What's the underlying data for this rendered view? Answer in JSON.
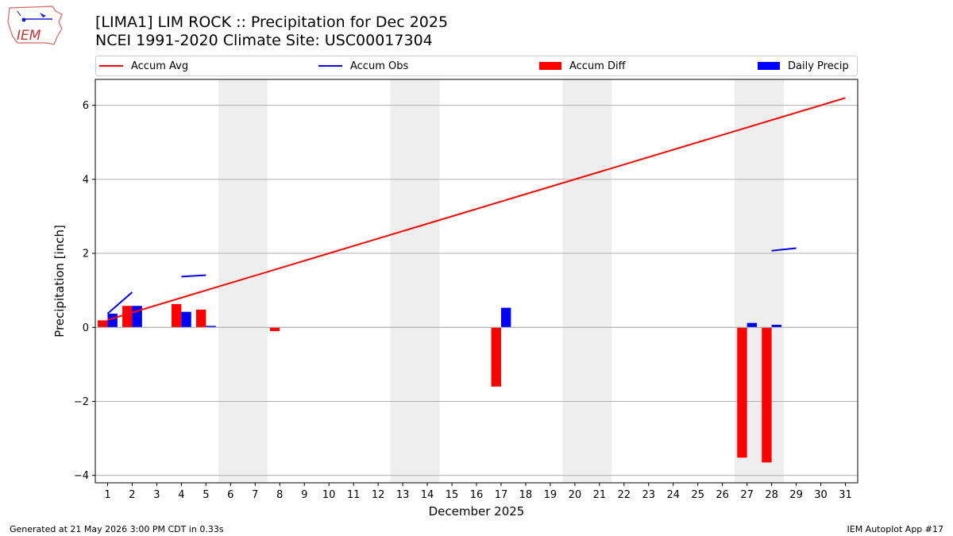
{
  "header": {
    "title_line1": "[LIMA1] LIM ROCK :: Precipitation for Dec 2025",
    "title_line2": "NCEI 1991-2020 Climate Site: USC00017304",
    "logo_text": "IEM"
  },
  "footer": {
    "generated": "Generated at 21 May 2026 3:00 PM CDT in 0.33s",
    "app": "IEM Autoplot App #17"
  },
  "colors": {
    "accum_avg": "#ff0000",
    "accum_obs": "#0000ff",
    "accum_diff": "#ff0000",
    "daily_precip": "#0000ff",
    "weekend_shade": "#eeeeee",
    "grid": "#b0b0b0"
  },
  "chart_data": {
    "type": "bar",
    "xlabel": "December 2025",
    "ylabel": "Precipitation [inch]",
    "xlim": [
      0.5,
      31.5
    ],
    "ylim": [
      -4.2,
      6.7
    ],
    "yticks": [
      -4,
      -2,
      0,
      2,
      4,
      6
    ],
    "ytick_labels": [
      "−4",
      "−2",
      "0",
      "2",
      "4",
      "6"
    ],
    "categories": [
      "1",
      "2",
      "3",
      "4",
      "5",
      "6",
      "7",
      "8",
      "9",
      "10",
      "11",
      "12",
      "13",
      "14",
      "15",
      "16",
      "17",
      "18",
      "19",
      "20",
      "21",
      "22",
      "23",
      "24",
      "25",
      "26",
      "27",
      "28",
      "29",
      "30",
      "31"
    ],
    "grid": "horizontal",
    "legend_position": "top",
    "weekend_shading": [
      [
        6,
        7
      ],
      [
        13,
        14
      ],
      [
        20,
        21
      ],
      [
        27,
        28
      ]
    ],
    "series": [
      {
        "name": "Accum Avg",
        "kind": "line",
        "color": "#ff0000",
        "x": [
          1,
          31
        ],
        "values": [
          0.2,
          6.2
        ]
      },
      {
        "name": "Accum Obs",
        "kind": "line-segments",
        "color": "#0000ff",
        "segments": [
          {
            "x": [
              1,
              2
            ],
            "values": [
              0.37,
              0.95
            ]
          },
          {
            "x": [
              4,
              5
            ],
            "values": [
              1.37,
              1.41
            ]
          },
          {
            "x": [
              28,
              29
            ],
            "values": [
              2.07,
              2.14
            ]
          }
        ]
      },
      {
        "name": "Accum Diff",
        "kind": "bar",
        "color": "#ff0000",
        "values": [
          0.19,
          0.58,
          0,
          0.63,
          0.48,
          0,
          0,
          -0.1,
          0,
          0,
          0,
          0,
          0,
          0,
          0,
          0,
          -1.6,
          0,
          0,
          0,
          0,
          0,
          0,
          0,
          0,
          0,
          -3.52,
          -3.65,
          0,
          0,
          0
        ]
      },
      {
        "name": "Daily Precip",
        "kind": "bar",
        "color": "#0000ff",
        "values": [
          0.37,
          0.58,
          0,
          0.42,
          0.04,
          0,
          0,
          0,
          0,
          0,
          0,
          0,
          0,
          0,
          0,
          0,
          0.53,
          0,
          0,
          0,
          0,
          0,
          0,
          0,
          0,
          0,
          0.12,
          0.07,
          0,
          0,
          0
        ]
      }
    ]
  }
}
